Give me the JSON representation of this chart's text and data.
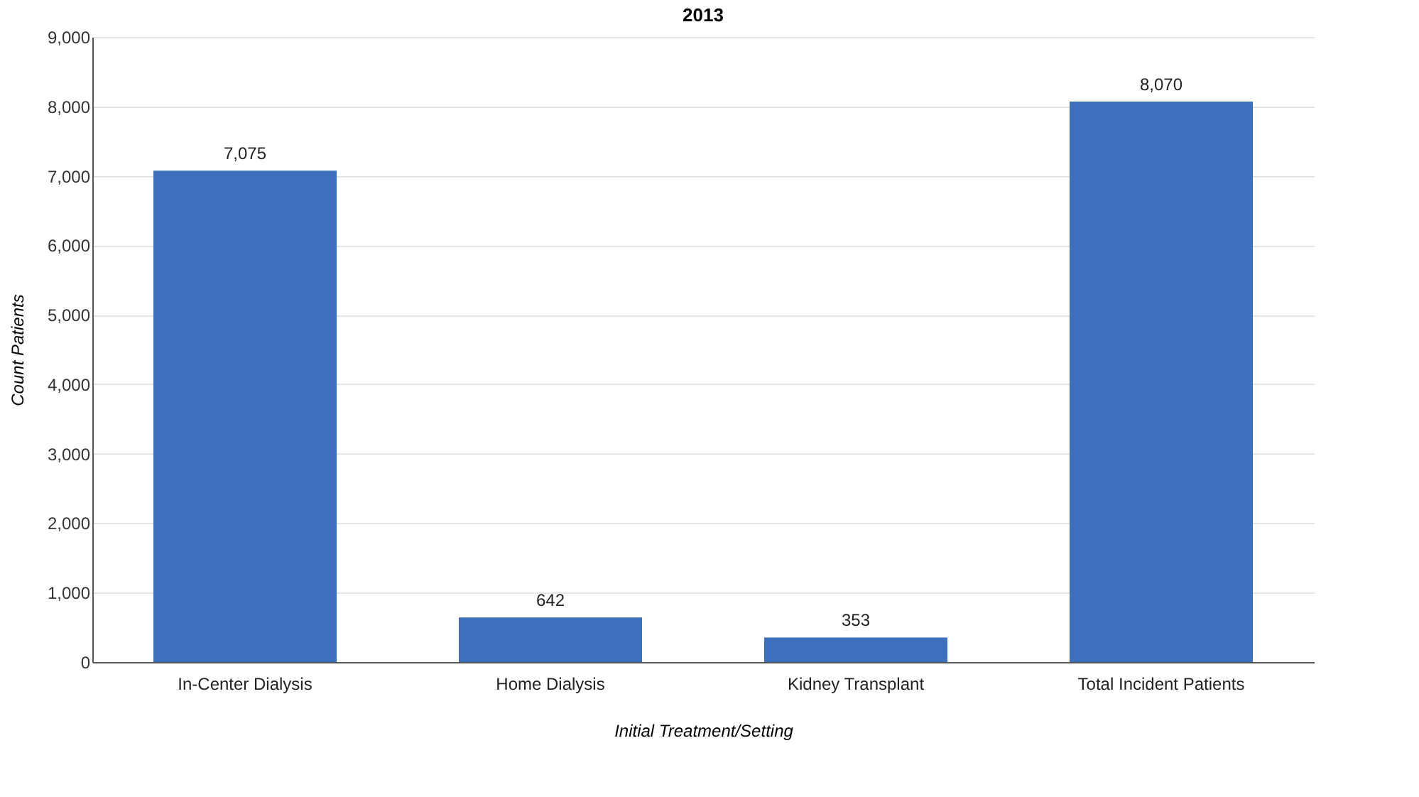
{
  "chart_data": {
    "type": "bar",
    "title": "2013",
    "xlabel": "Initial Treatment/Setting",
    "ylabel": "Count Patients",
    "categories": [
      "In-Center Dialysis",
      "Home Dialysis",
      "Kidney Transplant",
      "Total Incident Patients"
    ],
    "values": [
      7075,
      642,
      353,
      8070
    ],
    "value_labels": [
      "7,075",
      "642",
      "353",
      "8,070"
    ],
    "color": "#3d6fbd",
    "grid": "y",
    "ylim": [
      0,
      9000
    ],
    "yticks": [
      0,
      {
        "value": 1000,
        "label": "1,000"
      },
      {
        "value": 2000,
        "label": "2,000"
      },
      {
        "value": 3000,
        "label": "3,000"
      },
      {
        "value": 4000,
        "label": "4,000"
      },
      {
        "value": 5000,
        "label": "5,000"
      },
      {
        "value": 6000,
        "label": "6,000"
      },
      {
        "value": 7000,
        "label": "7,000"
      },
      {
        "value": 8000,
        "label": "8,000"
      },
      {
        "value": 9000,
        "label": "9,000"
      }
    ]
  }
}
